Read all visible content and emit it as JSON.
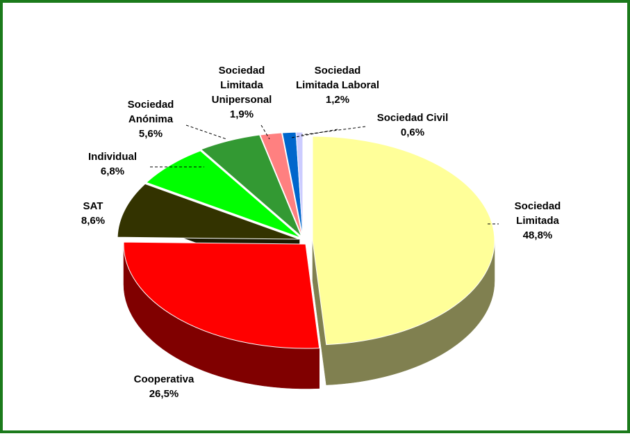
{
  "chart_data": {
    "type": "pie",
    "variant": "3d-exploded",
    "border_color": "#1b7a1b",
    "slices": [
      {
        "label_lines": [
          "Sociedad",
          "Limitada"
        ],
        "value": 48.8,
        "value_text": "48,8%",
        "color": "#ffff99",
        "side_color": "#808050"
      },
      {
        "label_lines": [
          "Cooperativa"
        ],
        "value": 26.5,
        "value_text": "26,5%",
        "color": "#ff0000",
        "side_color": "#800000"
      },
      {
        "label_lines": [
          "SAT"
        ],
        "value": 8.6,
        "value_text": "8,6%",
        "color": "#333300",
        "side_color": "#1a1a00"
      },
      {
        "label_lines": [
          "Individual"
        ],
        "value": 6.8,
        "value_text": "6,8%",
        "color": "#00ff00",
        "side_color": "#008000"
      },
      {
        "label_lines": [
          "Sociedad",
          "Anónima"
        ],
        "value": 5.6,
        "value_text": "5,6%",
        "color": "#339933",
        "side_color": "#1a4d1a"
      },
      {
        "label_lines": [
          "Sociedad",
          "Limitada",
          "Unipersonal"
        ],
        "value": 1.9,
        "value_text": "1,9%",
        "color": "#ff8080",
        "side_color": "#804040"
      },
      {
        "label_lines": [
          "Sociedad",
          "Limitada Laboral"
        ],
        "value": 1.2,
        "value_text": "1,2%",
        "color": "#0066cc",
        "side_color": "#003366"
      },
      {
        "label_lines": [
          "Sociedad Civil"
        ],
        "value": 0.6,
        "value_text": "0,6%",
        "color": "#ccccff",
        "side_color": "#666680"
      }
    ]
  }
}
